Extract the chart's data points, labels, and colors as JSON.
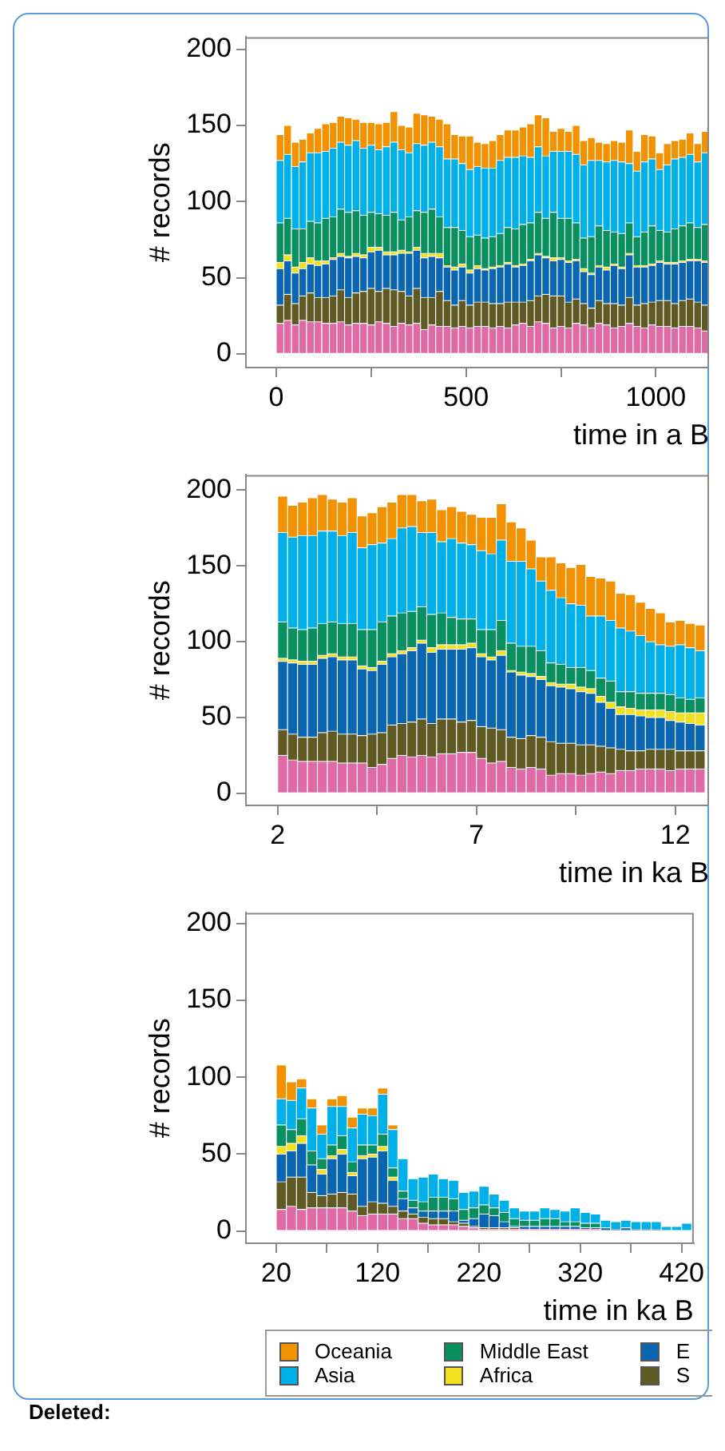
{
  "chart_data": [
    {
      "type": "bar",
      "stacked": true,
      "xlabel": "time in a B",
      "ylabel": "# records",
      "xlim": [
        -80,
        1140
      ],
      "xticks": [
        0,
        {
          "value": 250,
          "label": null
        },
        500,
        {
          "value": 750,
          "label": null
        },
        1000
      ],
      "ylim": [
        -9,
        208
      ],
      "yticks": [
        0,
        50,
        100,
        150,
        200
      ],
      "x": [
        10,
        30,
        50,
        70,
        90,
        110,
        130,
        150,
        170,
        190,
        210,
        230,
        250,
        270,
        290,
        310,
        330,
        350,
        370,
        390,
        410,
        430,
        450,
        470,
        490,
        510,
        530,
        550,
        570,
        590,
        610,
        630,
        650,
        670,
        690,
        710,
        730,
        750,
        770,
        790,
        810,
        830,
        850,
        870,
        890,
        910,
        930,
        950,
        970,
        990,
        1010,
        1030,
        1050,
        1070,
        1090,
        1110,
        1130
      ],
      "series": [
        {
          "color": "#e06aa5",
          "values": [
            20,
            22,
            19,
            22,
            21,
            21,
            20,
            20,
            21,
            19,
            20,
            20,
            19,
            21,
            20,
            18,
            20,
            19,
            20,
            16,
            19,
            18,
            18,
            17,
            18,
            17,
            18,
            18,
            17,
            18,
            17,
            19,
            20,
            18,
            21,
            20,
            17,
            18,
            17,
            20,
            19,
            17,
            20,
            19,
            17,
            18,
            20,
            18,
            17,
            19,
            18,
            18,
            17,
            18,
            18,
            17,
            15
          ]
        },
        {
          "color": "#5f5a24",
          "values": [
            12,
            17,
            14,
            16,
            19,
            16,
            17,
            18,
            21,
            18,
            20,
            21,
            24,
            20,
            23,
            24,
            21,
            19,
            23,
            21,
            18,
            23,
            17,
            15,
            17,
            15,
            16,
            16,
            16,
            15,
            17,
            15,
            14,
            17,
            17,
            19,
            21,
            20,
            17,
            16,
            14,
            13,
            15,
            14,
            16,
            14,
            17,
            14,
            16,
            15,
            17,
            17,
            16,
            17,
            18,
            17,
            17
          ]
        },
        {
          "color": "#0a66b0",
          "values": [
            24,
            22,
            20,
            18,
            19,
            21,
            22,
            24,
            22,
            26,
            24,
            22,
            24,
            27,
            22,
            23,
            25,
            28,
            25,
            26,
            27,
            22,
            22,
            23,
            22,
            21,
            22,
            21,
            23,
            24,
            25,
            23,
            24,
            26,
            27,
            24,
            23,
            24,
            26,
            25,
            21,
            22,
            22,
            22,
            25,
            24,
            28,
            25,
            24,
            24,
            25,
            24,
            26,
            25,
            25,
            27,
            28
          ]
        },
        {
          "color": "#f0e020",
          "values": [
            4,
            4,
            4,
            4,
            4,
            3,
            2,
            1,
            2,
            1,
            2,
            2,
            3,
            2,
            2,
            2,
            2,
            1,
            2,
            3,
            2,
            3,
            1,
            2,
            2,
            2,
            2,
            1,
            1,
            1,
            1,
            1,
            1,
            1,
            1,
            1,
            2,
            1,
            1,
            1,
            2,
            1,
            1,
            2,
            1,
            1,
            1,
            1,
            1,
            1,
            1,
            1,
            1,
            1,
            1,
            1,
            1
          ]
        },
        {
          "color": "#0a9060",
          "values": [
            26,
            24,
            25,
            22,
            24,
            25,
            28,
            27,
            29,
            29,
            28,
            26,
            23,
            22,
            24,
            26,
            20,
            23,
            24,
            27,
            29,
            24,
            25,
            26,
            22,
            22,
            20,
            20,
            20,
            21,
            23,
            24,
            26,
            24,
            27,
            25,
            30,
            26,
            28,
            24,
            20,
            24,
            26,
            24,
            21,
            22,
            20,
            19,
            22,
            25,
            20,
            20,
            22,
            23,
            24,
            21,
            24
          ]
        },
        {
          "color": "#00b0e8",
          "values": [
            41,
            42,
            41,
            44,
            45,
            46,
            44,
            45,
            44,
            44,
            46,
            44,
            44,
            42,
            45,
            46,
            46,
            42,
            44,
            44,
            44,
            46,
            45,
            45,
            44,
            44,
            45,
            46,
            45,
            48,
            46,
            47,
            45,
            43,
            43,
            41,
            40,
            44,
            44,
            45,
            48,
            50,
            43,
            45,
            47,
            47,
            39,
            43,
            46,
            44,
            40,
            44,
            46,
            45,
            45,
            43,
            47
          ]
        },
        {
          "color": "#f29200",
          "values": [
            17,
            19,
            16,
            15,
            13,
            16,
            18,
            17,
            17,
            18,
            14,
            17,
            15,
            17,
            16,
            20,
            16,
            17,
            20,
            20,
            17,
            18,
            23,
            16,
            18,
            22,
            16,
            16,
            18,
            17,
            18,
            18,
            19,
            22,
            21,
            25,
            13,
            15,
            13,
            19,
            16,
            15,
            12,
            12,
            13,
            13,
            22,
            13,
            18,
            15,
            11,
            14,
            12,
            12,
            14,
            12,
            14
          ]
        }
      ]
    },
    {
      "type": "bar",
      "stacked": true,
      "xlabel": "time in ka B",
      "ylabel": "# records",
      "xlim": [
        1.2,
        12.85
      ],
      "xticks": [
        2,
        {
          "value": 4.5,
          "label": null
        },
        7,
        {
          "value": 9.5,
          "label": null
        },
        12
      ],
      "ylim": [
        -8,
        210
      ],
      "yticks": [
        0,
        50,
        100,
        150,
        200
      ],
      "x": [
        2.125,
        2.375,
        2.625,
        2.875,
        3.125,
        3.375,
        3.625,
        3.875,
        4.125,
        4.375,
        4.625,
        4.875,
        5.125,
        5.375,
        5.625,
        5.875,
        6.125,
        6.375,
        6.625,
        6.875,
        7.125,
        7.375,
        7.625,
        7.875,
        8.125,
        8.375,
        8.625,
        8.875,
        9.125,
        9.375,
        9.625,
        9.875,
        10.125,
        10.375,
        10.625,
        10.875,
        11.125,
        11.375,
        11.625,
        11.875,
        12.125,
        12.375,
        12.625
      ],
      "series": [
        {
          "color": "#e06aa5",
          "values": [
            25,
            22,
            21,
            21,
            21,
            21,
            20,
            20,
            20,
            17,
            19,
            23,
            25,
            24,
            25,
            24,
            26,
            26,
            27,
            27,
            23,
            20,
            21,
            17,
            16,
            17,
            16,
            12,
            13,
            13,
            12,
            13,
            14,
            13,
            15,
            15,
            16,
            16,
            16,
            15,
            16,
            16,
            16
          ]
        },
        {
          "color": "#5f5a24",
          "values": [
            17,
            17,
            16,
            16,
            19,
            20,
            19,
            19,
            18,
            22,
            21,
            22,
            21,
            23,
            24,
            22,
            23,
            23,
            20,
            21,
            21,
            23,
            21,
            20,
            20,
            21,
            21,
            22,
            20,
            20,
            20,
            19,
            17,
            17,
            14,
            13,
            12,
            13,
            13,
            14,
            12,
            12,
            12
          ]
        },
        {
          "color": "#0a66b0",
          "values": [
            45,
            47,
            48,
            48,
            49,
            49,
            49,
            49,
            44,
            42,
            45,
            45,
            46,
            47,
            50,
            47,
            46,
            46,
            48,
            48,
            46,
            45,
            49,
            43,
            42,
            39,
            38,
            37,
            37,
            36,
            35,
            34,
            29,
            26,
            23,
            24,
            23,
            21,
            21,
            19,
            19,
            18,
            17
          ]
        },
        {
          "color": "#f0e020",
          "values": [
            2,
            2,
            2,
            2,
            2,
            2,
            2,
            2,
            2,
            2,
            2,
            2,
            2,
            2,
            2,
            3,
            3,
            3,
            3,
            3,
            2,
            2,
            3,
            1,
            2,
            2,
            2,
            2,
            2,
            3,
            3,
            3,
            4,
            4,
            5,
            4,
            4,
            5,
            5,
            6,
            6,
            7,
            8
          ]
        },
        {
          "color": "#0a9060",
          "values": [
            24,
            21,
            21,
            22,
            21,
            21,
            22,
            22,
            24,
            25,
            26,
            25,
            25,
            24,
            22,
            22,
            21,
            18,
            17,
            16,
            16,
            18,
            20,
            18,
            17,
            18,
            17,
            13,
            13,
            11,
            13,
            12,
            12,
            14,
            10,
            11,
            11,
            11,
            11,
            11,
            10,
            9,
            10
          ]
        },
        {
          "color": "#00b0e8",
          "values": [
            59,
            60,
            62,
            61,
            61,
            60,
            58,
            60,
            54,
            56,
            52,
            51,
            56,
            56,
            49,
            54,
            47,
            52,
            50,
            49,
            52,
            50,
            53,
            54,
            56,
            51,
            46,
            48,
            44,
            42,
            41,
            36,
            41,
            40,
            42,
            40,
            38,
            34,
            32,
            32,
            35,
            34,
            31
          ]
        },
        {
          "color": "#f29200",
          "values": [
            24,
            21,
            22,
            25,
            24,
            21,
            22,
            23,
            21,
            21,
            24,
            24,
            22,
            21,
            21,
            22,
            21,
            21,
            21,
            20,
            22,
            24,
            24,
            26,
            22,
            19,
            16,
            22,
            23,
            24,
            27,
            26,
            25,
            26,
            23,
            24,
            22,
            22,
            21,
            16,
            16,
            16,
            17
          ]
        }
      ]
    },
    {
      "type": "bar",
      "stacked": true,
      "xlabel": "time in ka B",
      "ylabel": "# records",
      "xlim": [
        -10,
        432
      ],
      "xticks": [
        20,
        {
          "value": 70,
          "label": null
        },
        120,
        {
          "value": 170,
          "label": null
        },
        220,
        {
          "value": 270,
          "label": null
        },
        320,
        {
          "value": 370,
          "label": null
        },
        420
      ],
      "ylim": [
        -8,
        207
      ],
      "yticks": [
        0,
        50,
        100,
        150,
        200
      ],
      "legend": "bottom",
      "annotations": [
        "Deleted:"
      ],
      "x": [
        25,
        35,
        45,
        55,
        65,
        75,
        85,
        95,
        105,
        115,
        125,
        135,
        145,
        155,
        165,
        175,
        185,
        195,
        205,
        215,
        225,
        235,
        245,
        255,
        265,
        275,
        285,
        295,
        305,
        315,
        325,
        335,
        345,
        355,
        365,
        375,
        385,
        395,
        405,
        415,
        425
      ],
      "series": [
        {
          "color": "#e06aa5",
          "values": [
            14,
            16,
            14,
            15,
            15,
            15,
            15,
            13,
            10,
            11,
            11,
            11,
            8,
            8,
            5,
            4,
            4,
            4,
            3,
            2,
            1,
            1,
            1,
            1,
            1,
            1,
            1,
            1,
            1,
            1,
            1,
            1,
            0,
            0,
            0,
            0,
            0,
            0,
            0,
            0,
            0
          ]
        },
        {
          "name": "S",
          "color": "#5f5a24",
          "values": [
            18,
            19,
            21,
            10,
            8,
            9,
            10,
            11,
            6,
            8,
            7,
            5,
            5,
            3,
            4,
            4,
            4,
            2,
            2,
            1,
            1,
            1,
            1,
            1,
            0,
            0,
            0,
            0,
            0,
            0,
            0,
            0,
            0,
            0,
            0,
            0,
            0,
            0,
            0,
            0,
            0
          ]
        },
        {
          "name": "E",
          "color": "#0a66b0",
          "values": [
            18,
            17,
            22,
            18,
            14,
            23,
            25,
            12,
            31,
            29,
            34,
            17,
            8,
            4,
            4,
            5,
            5,
            7,
            2,
            5,
            9,
            8,
            4,
            1,
            2,
            2,
            2,
            2,
            2,
            2,
            1,
            1,
            2,
            1,
            2,
            1,
            1,
            1,
            0,
            0,
            0
          ]
        },
        {
          "name": "Africa",
          "color": "#f0e020",
          "values": [
            5,
            5,
            5,
            0,
            3,
            2,
            3,
            2,
            2,
            2,
            3,
            2,
            0,
            0,
            0,
            0,
            0,
            0,
            0,
            0,
            0,
            0,
            0,
            0,
            0,
            0,
            0,
            0,
            0,
            0,
            0,
            0,
            0,
            0,
            0,
            0,
            0,
            0,
            0,
            0,
            0
          ]
        },
        {
          "name": "Middle East",
          "color": "#0a9060",
          "values": [
            14,
            9,
            11,
            9,
            7,
            7,
            9,
            7,
            7,
            6,
            8,
            6,
            5,
            5,
            6,
            9,
            9,
            8,
            7,
            7,
            6,
            5,
            6,
            5,
            4,
            4,
            5,
            5,
            3,
            3,
            3,
            3,
            0,
            0,
            0,
            0,
            0,
            0,
            0,
            0,
            0
          ]
        },
        {
          "name": "Asia",
          "color": "#00b0e8",
          "values": [
            17,
            19,
            20,
            28,
            16,
            25,
            19,
            22,
            20,
            19,
            26,
            25,
            21,
            14,
            16,
            15,
            12,
            12,
            11,
            11,
            12,
            9,
            8,
            7,
            6,
            6,
            7,
            6,
            7,
            9,
            7,
            6,
            5,
            5,
            5,
            5,
            5,
            5,
            3,
            3,
            5
          ]
        },
        {
          "name": "Oceania",
          "color": "#f29200",
          "values": [
            22,
            12,
            6,
            6,
            6,
            5,
            7,
            7,
            4,
            5,
            4,
            3,
            0,
            0,
            0,
            0,
            0,
            0,
            0,
            0,
            0,
            0,
            0,
            0,
            0,
            0,
            0,
            0,
            0,
            0,
            0,
            0,
            0,
            0,
            0,
            0,
            0,
            0,
            0,
            0,
            0
          ]
        }
      ]
    }
  ]
}
